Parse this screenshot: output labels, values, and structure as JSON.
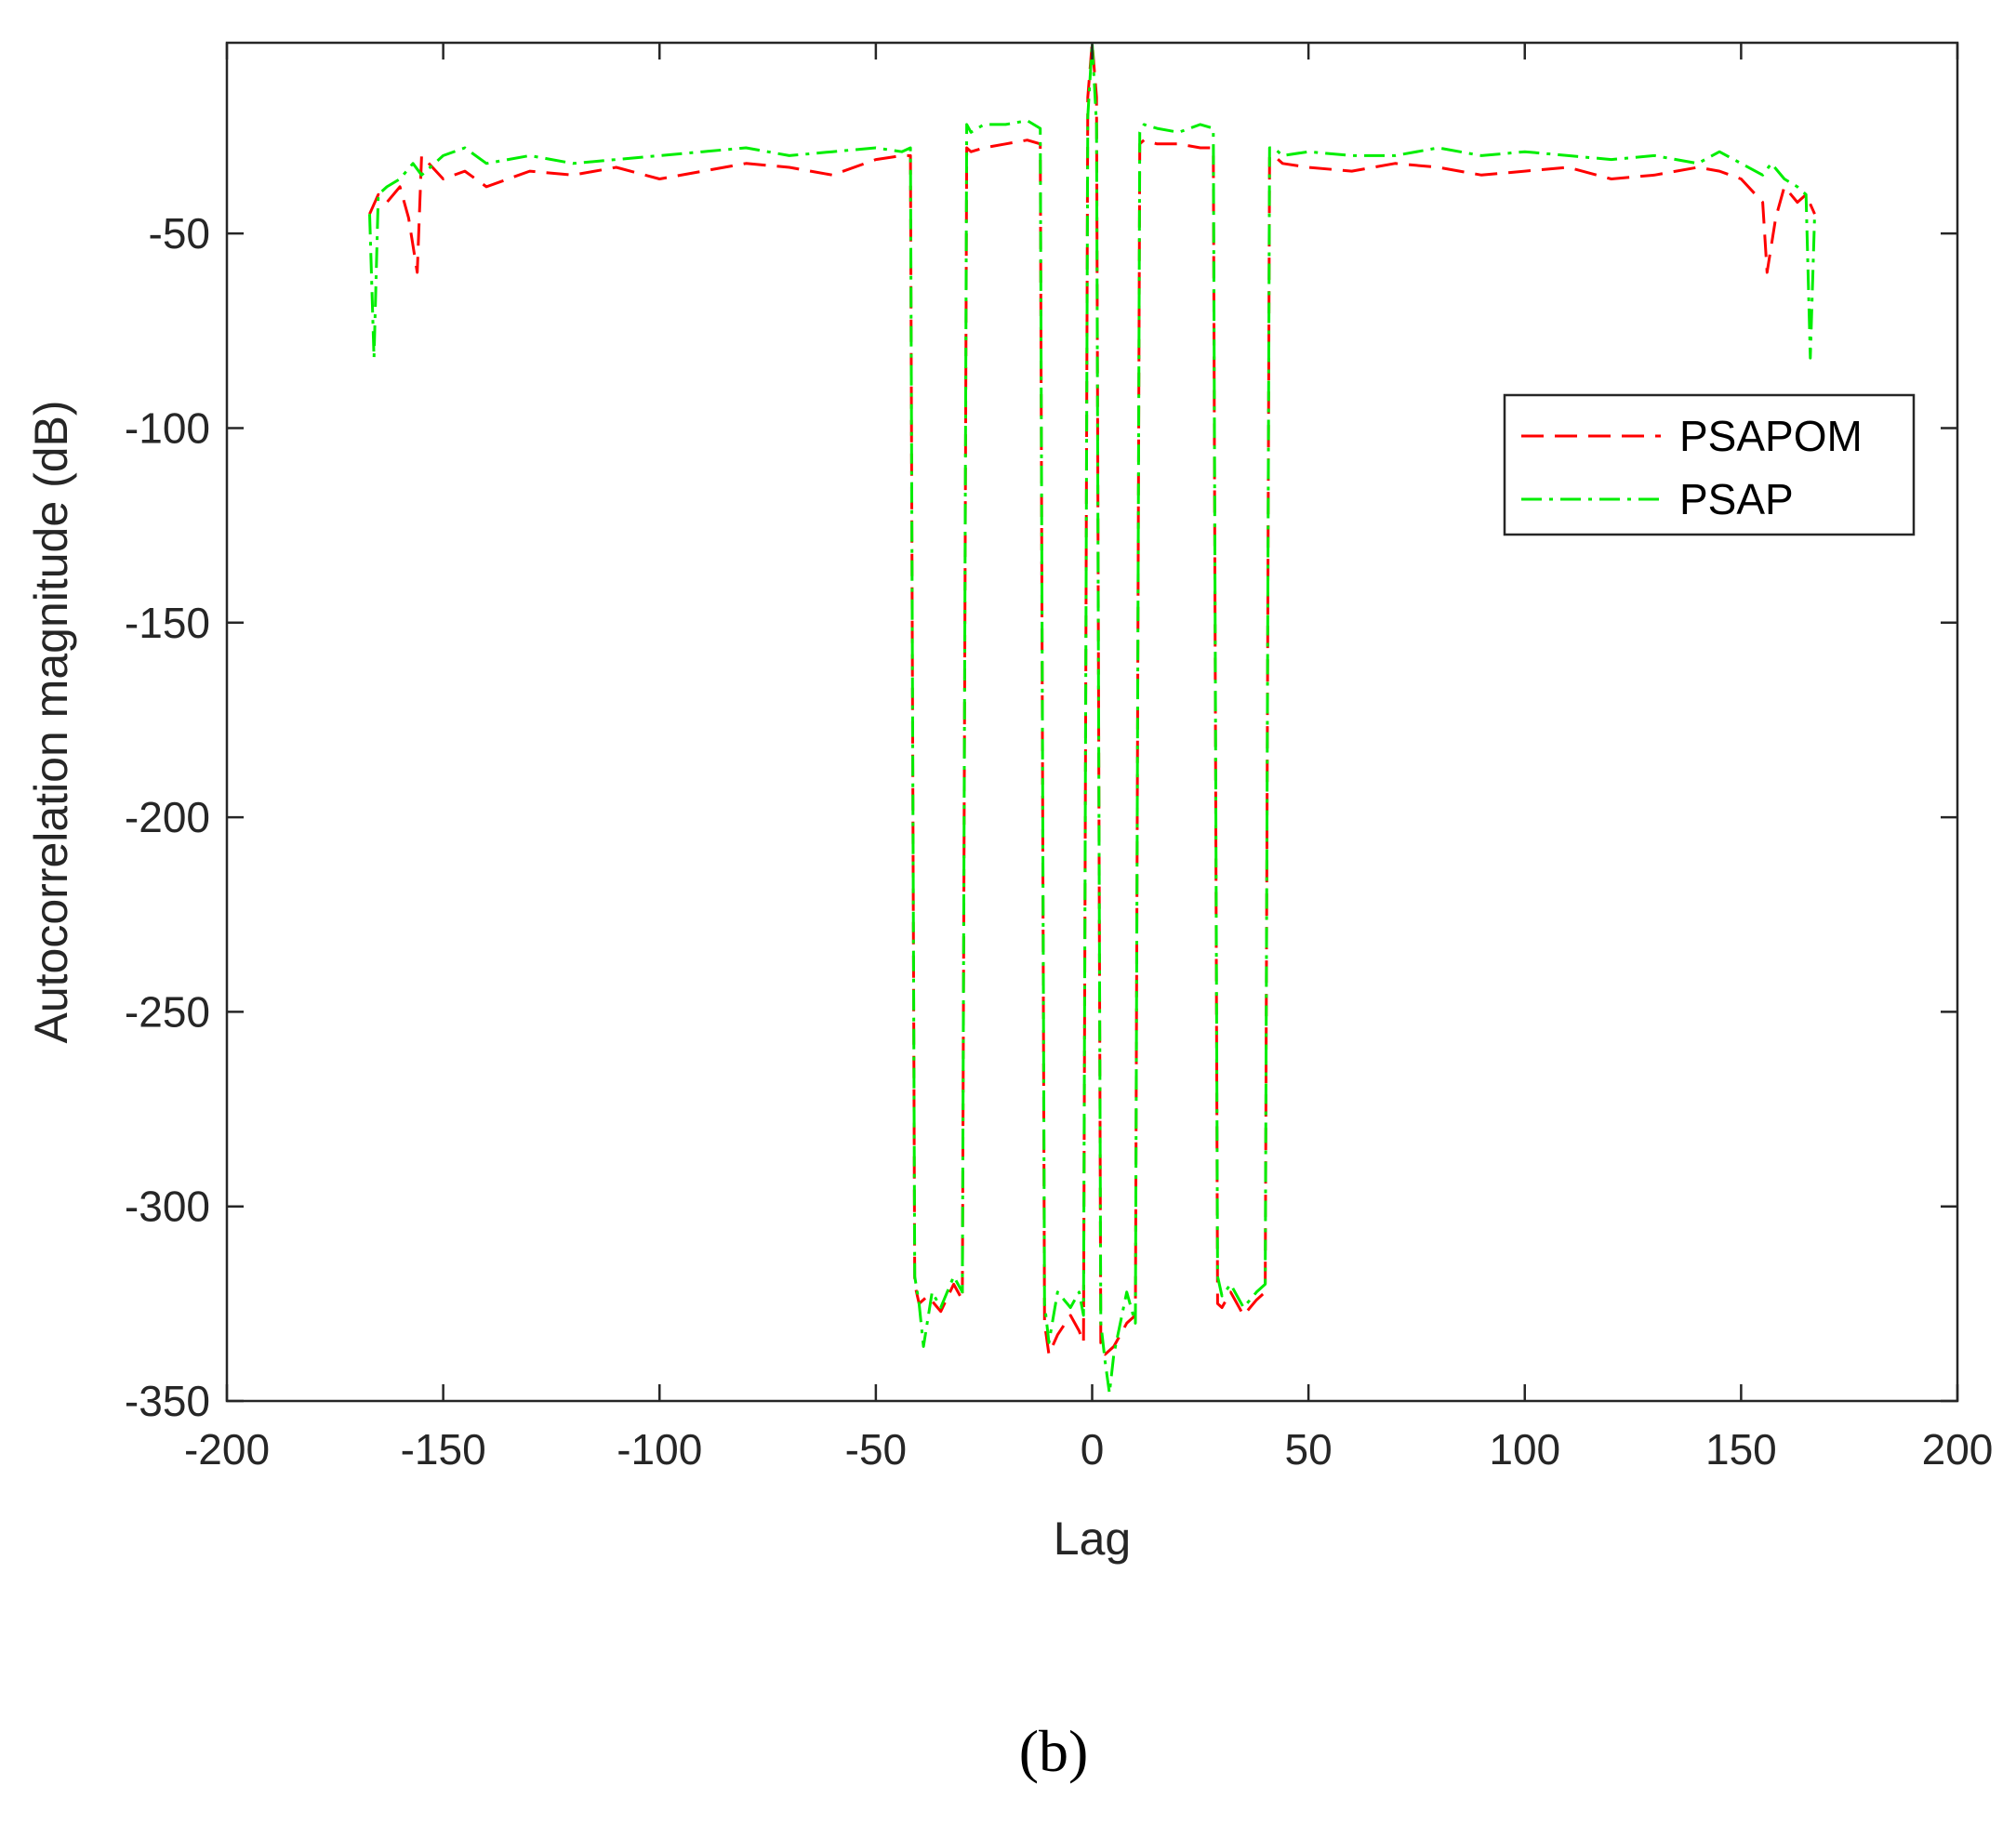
{
  "chart_data": {
    "type": "line",
    "title": "",
    "xlabel": "Lag",
    "ylabel": "Autocorrelation magnitude (dB)",
    "xlim": [
      -200,
      200
    ],
    "ylim": [
      -350,
      -1
    ],
    "xticks": [
      -200,
      -150,
      -100,
      -50,
      0,
      50,
      100,
      150,
      200
    ],
    "xtick_labels": [
      "-200",
      "-150",
      "-100",
      "-50",
      "0",
      "50",
      "100",
      "150",
      "200"
    ],
    "yticks": [
      -350,
      -300,
      -250,
      -200,
      -150,
      -100,
      -50
    ],
    "ytick_labels": [
      "-350",
      "-300",
      "-250",
      "-200",
      "-150",
      "-100",
      "-50"
    ],
    "grid": false,
    "legend_position": "right",
    "series": [
      {
        "name": "PSAPOM",
        "color": "#ff0000",
        "style": "dashed",
        "x": [
          -167,
          -165,
          -163,
          -160,
          -158,
          -156,
          -155,
          -150,
          -145,
          -140,
          -130,
          -120,
          -110,
          -100,
          -90,
          -80,
          -70,
          -60,
          -50,
          -44,
          -42,
          -41,
          -40,
          -38,
          -35,
          -32,
          -30,
          -29,
          -28,
          -25,
          -20,
          -15,
          -12,
          -11,
          -10,
          -8,
          -5,
          -3,
          -2,
          -1,
          0,
          1,
          2,
          3,
          5,
          8,
          10,
          11,
          12,
          15,
          20,
          25,
          28,
          29,
          30,
          32,
          35,
          38,
          40,
          41,
          42,
          44,
          50,
          60,
          70,
          80,
          90,
          100,
          110,
          120,
          130,
          140,
          145,
          150,
          155,
          156,
          158,
          160,
          163,
          165,
          167
        ],
        "values": [
          -45,
          -40,
          -42,
          -38,
          -46,
          -60,
          -30,
          -36,
          -34,
          -38,
          -34,
          -35,
          -33,
          -36,
          -34,
          -32,
          -33,
          -35,
          -31,
          -30,
          -30,
          -320,
          -325,
          -323,
          -327,
          -320,
          -324,
          -28,
          -29,
          -28,
          -27,
          -26,
          -27,
          -330,
          -338,
          -333,
          -328,
          -332,
          -335,
          -15,
          -1,
          -15,
          -335,
          -338,
          -336,
          -330,
          -328,
          -27,
          -26,
          -27,
          -27,
          -28,
          -28,
          -325,
          -326,
          -322,
          -328,
          -324,
          -322,
          -30,
          -30,
          -32,
          -33,
          -34,
          -32,
          -33,
          -35,
          -34,
          -33,
          -36,
          -35,
          -33,
          -34,
          -36,
          -42,
          -60,
          -46,
          -38,
          -42,
          -40,
          -45
        ]
      },
      {
        "name": "PSAP",
        "color": "#00ee00",
        "style": "dashdot",
        "x": [
          -167,
          -166,
          -165,
          -163,
          -160,
          -157,
          -155,
          -150,
          -145,
          -140,
          -130,
          -120,
          -110,
          -100,
          -90,
          -80,
          -70,
          -60,
          -50,
          -44,
          -42,
          -41,
          -40,
          -39,
          -37,
          -35,
          -32,
          -30,
          -29,
          -28,
          -25,
          -20,
          -15,
          -12,
          -11,
          -10,
          -8,
          -5,
          -3,
          -2,
          -1,
          0,
          1,
          2,
          3,
          4,
          5,
          8,
          10,
          11,
          12,
          15,
          20,
          25,
          28,
          29,
          30,
          32,
          35,
          38,
          40,
          41,
          42,
          44,
          50,
          60,
          70,
          80,
          90,
          100,
          110,
          120,
          130,
          140,
          145,
          150,
          155,
          157,
          160,
          163,
          165,
          166,
          167
        ],
        "values": [
          -45,
          -82,
          -40,
          -38,
          -36,
          -32,
          -35,
          -30,
          -28,
          -32,
          -30,
          -32,
          -31,
          -30,
          -29,
          -28,
          -30,
          -29,
          -28,
          -29,
          -28,
          -318,
          -325,
          -336,
          -322,
          -326,
          -318,
          -322,
          -22,
          -24,
          -22,
          -22,
          -21,
          -23,
          -325,
          -335,
          -322,
          -326,
          -322,
          -328,
          -20,
          -1,
          -22,
          -330,
          -340,
          -348,
          -338,
          -322,
          -330,
          -24,
          -22,
          -23,
          -24,
          -22,
          -23,
          -318,
          -323,
          -320,
          -326,
          -322,
          -320,
          -28,
          -28,
          -30,
          -29,
          -30,
          -30,
          -28,
          -30,
          -29,
          -30,
          -31,
          -30,
          -32,
          -29,
          -32,
          -35,
          -32,
          -36,
          -38,
          -40,
          -82,
          -45
        ]
      }
    ],
    "panel_label": "(b)"
  }
}
